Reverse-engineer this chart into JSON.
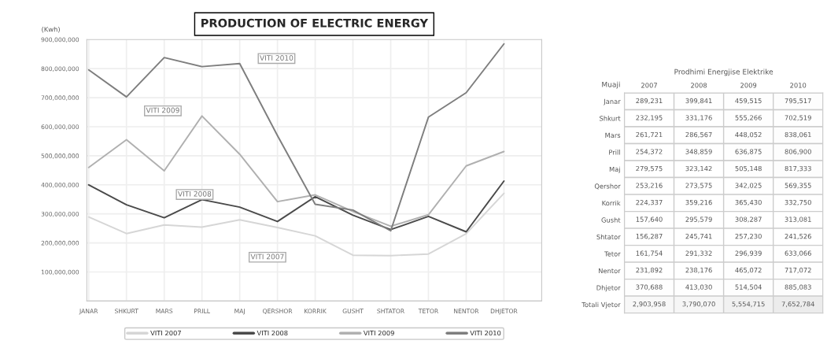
{
  "chart_data": [
    {
      "type": "line",
      "title": "PRODUCTION OF ELECTRIC ENERGY",
      "ylabel": "(Kwh)",
      "categories": [
        "JANAR",
        "SHKURT",
        "MARS",
        "PRILL",
        "MAJ",
        "QERSHOR",
        "KORRIK",
        "GUSHT",
        "SHTATOR",
        "TETOR",
        "NENTOR",
        "DHJETOR"
      ],
      "series": [
        {
          "name": "VITI 2007",
          "color": "#d6d6d6",
          "values": [
            289231000,
            232195000,
            261721000,
            254372000,
            279575000,
            253216000,
            224337000,
            157640000,
            156287000,
            161754000,
            231892000,
            370688000
          ]
        },
        {
          "name": "VITI 2008",
          "color": "#4a4a4a",
          "values": [
            399841000,
            331176000,
            286567000,
            348859000,
            323142000,
            273575000,
            359216000,
            295579000,
            245741000,
            291332000,
            238176000,
            413030000
          ]
        },
        {
          "name": "VITI 2009",
          "color": "#b0b0b0",
          "values": [
            459515000,
            555266000,
            448052000,
            636875000,
            505148000,
            342025000,
            365430000,
            308287000,
            257230000,
            296939000,
            465072000,
            514504000
          ]
        },
        {
          "name": "VITI 2010",
          "color": "#7e7e7e",
          "values": [
            795517000,
            702519000,
            838061000,
            806900000,
            817333000,
            569355000,
            332750000,
            313081000,
            241526000,
            633066000,
            717072000,
            885083000
          ]
        }
      ],
      "ylim": [
        0,
        900000000
      ],
      "yticks": [
        {
          "value": 0,
          "label": null
        },
        {
          "value": 100000000,
          "label": "100,000,000"
        },
        {
          "value": 200000000,
          "label": "200,000,000"
        },
        {
          "value": 300000000,
          "label": "300,000,000"
        },
        {
          "value": 400000000,
          "label": "400,000,000"
        },
        {
          "value": 500000000,
          "label": "500,000,000"
        },
        {
          "value": 600000000,
          "label": "600,000,000"
        },
        {
          "value": 700000000,
          "label": "700,000,000"
        },
        {
          "value": 800000000,
          "label": "800,000,000"
        },
        {
          "value": 900000000,
          "label": "900,000,000"
        }
      ],
      "annotations": [
        "VITI 2010",
        "VITI 2009",
        "VITI 2008",
        "VITI 2007"
      ],
      "grid": true,
      "legend": "bottom",
      "marker": "none",
      "line_style": "solid"
    },
    {
      "type": "heatmap",
      "title": "Prodhimi Energjise Elektrike",
      "ylabel": "Muaji",
      "colors": [
        "#ffffff",
        "#ececec"
      ],
      "cells": [
        [
          289231,
          399841,
          459515,
          795517
        ],
        [
          232195,
          331176,
          555266,
          702519
        ],
        [
          261721,
          286567,
          448052,
          838061
        ],
        [
          254372,
          348859,
          636875,
          806900
        ],
        [
          279575,
          323142,
          505148,
          817333
        ],
        [
          253216,
          273575,
          342025,
          569355
        ],
        [
          224337,
          359216,
          365430,
          332750
        ],
        [
          157640,
          295579,
          308287,
          313081
        ],
        [
          156287,
          245741,
          257230,
          241526
        ],
        [
          161754,
          291332,
          296939,
          633066
        ],
        [
          231892,
          238176,
          465072,
          717072
        ],
        [
          370688,
          413030,
          514504,
          885083
        ],
        [
          2903958,
          3790070,
          5554715,
          7652784
        ]
      ],
      "categories": [
        "2007",
        "2008",
        "2009",
        "2010"
      ],
      "y_categories": [
        "Janar",
        "Shkurt",
        "Mars",
        "Prill",
        "Maj",
        "Qershor",
        "Korrik",
        "Gusht",
        "Shtator",
        "Tetor",
        "Nentor",
        "Dhjetor",
        "Totali Vjetor"
      ],
      "cell_labels": [
        [
          "289,231",
          "399,841",
          "459,515",
          "795,517"
        ],
        [
          "232,195",
          "331,176",
          "555,266",
          "702,519"
        ],
        [
          "261,721",
          "286,567",
          "448,052",
          "838,061"
        ],
        [
          "254,372",
          "348,859",
          "636,875",
          "806,900"
        ],
        [
          "279,575",
          "323,142",
          "505,148",
          "817,333"
        ],
        [
          "253,216",
          "273,575",
          "342,025",
          "569,355"
        ],
        [
          "224,337",
          "359,216",
          "365,430",
          "332,750"
        ],
        [
          "157,640",
          "295,579",
          "308,287",
          "313,081"
        ],
        [
          "156,287",
          "245,741",
          "257,230",
          "241,526"
        ],
        [
          "161,754",
          "291,332",
          "296,939",
          "633,066"
        ],
        [
          "231,892",
          "238,176",
          "465,072",
          "717,072"
        ],
        [
          "370,688",
          "413,030",
          "514,504",
          "885,083"
        ],
        [
          "2,903,958",
          "3,790,070",
          "5,554,715",
          "7,652,784"
        ]
      ]
    }
  ]
}
